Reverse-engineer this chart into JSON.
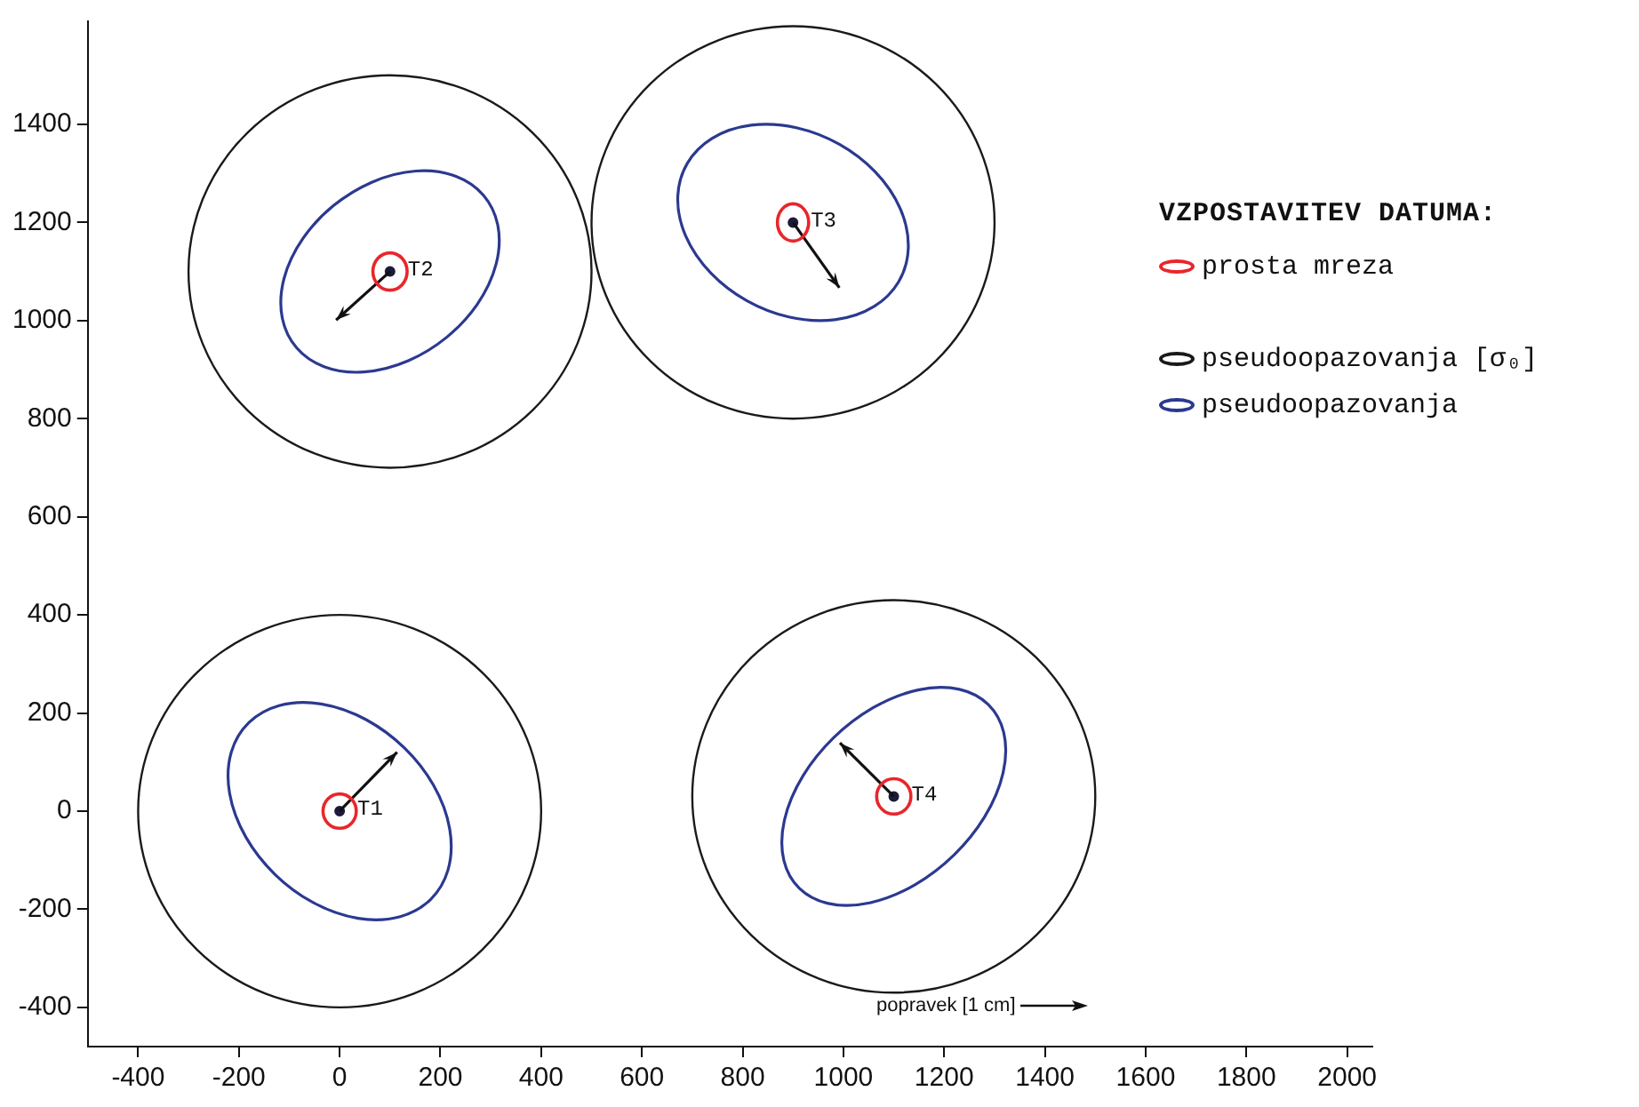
{
  "chart_data": {
    "type": "line",
    "xlim": [
      -500,
      2050
    ],
    "ylim": [
      -480,
      1610
    ],
    "xticks": [
      -400,
      -200,
      0,
      200,
      400,
      600,
      800,
      1000,
      1200,
      1400,
      1600,
      1800,
      2000
    ],
    "yticks": [
      -400,
      -200,
      0,
      200,
      400,
      600,
      800,
      1000,
      1200,
      1400
    ],
    "grid": false,
    "legend_title": "VZPOSTAVITEV DATUMA:",
    "annotations": [
      {
        "text": "T1",
        "x": 0,
        "y": 0
      },
      {
        "text": "T2",
        "x": 100,
        "y": 1100
      },
      {
        "text": "T3",
        "x": 900,
        "y": 1200
      },
      {
        "text": "T4",
        "x": 1100,
        "y": 30
      },
      "prosta mreza",
      "pseudoopazovanja [σ₀]",
      "pseudoopazovanja",
      "popravek [1 cm]"
    ],
    "series": [
      {
        "color": "#111111",
        "x": [
          0,
          114
        ],
        "values": [
          0,
          120
        ]
      },
      {
        "color": "#111111",
        "x": [
          100,
          -7
        ],
        "values": [
          1100,
          1001
        ]
      },
      {
        "color": "#111111",
        "x": [
          900,
          992
        ],
        "values": [
          1200,
          1067
        ]
      },
      {
        "color": "#111111",
        "x": [
          1100,
          993
        ],
        "values": [
          30,
          139
        ]
      },
      {
        "color": "#1b1b3a",
        "type": "scatter",
        "marker": "circle",
        "x": [
          0,
          100,
          900,
          1100
        ],
        "values": [
          0,
          1100,
          1200,
          30
        ]
      }
    ]
  }
}
